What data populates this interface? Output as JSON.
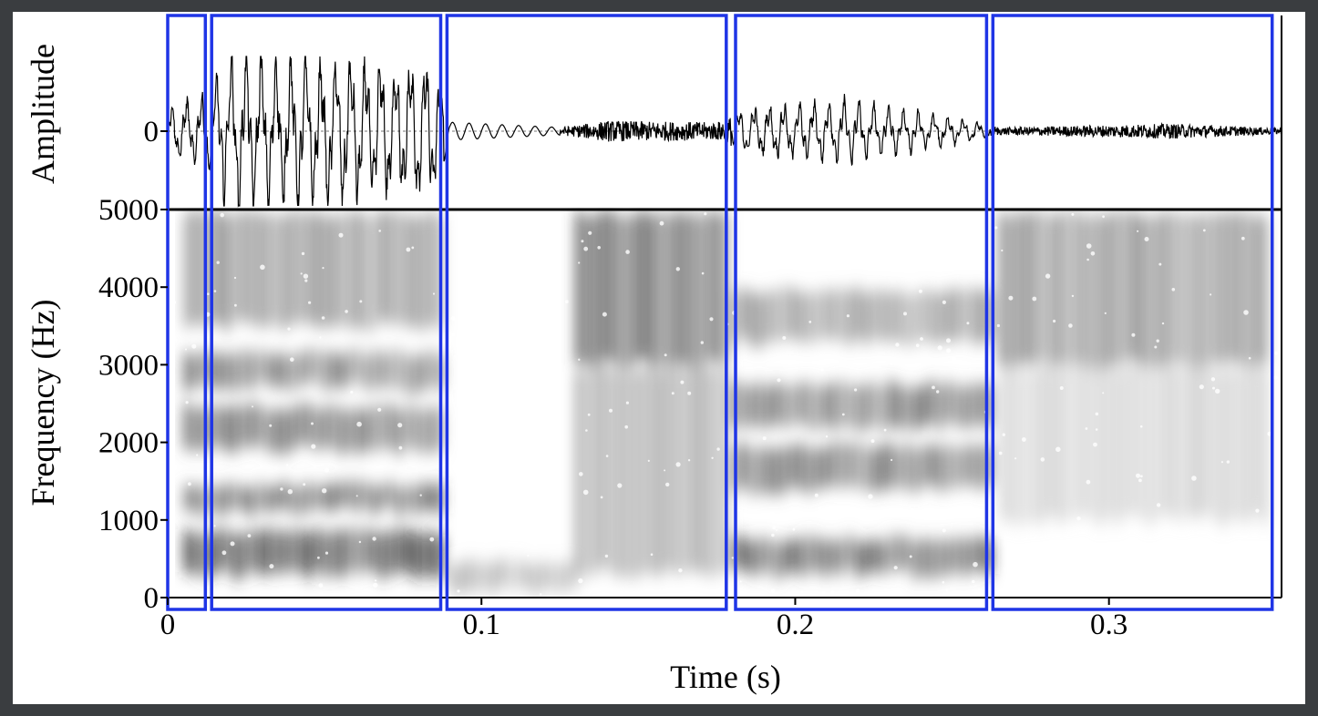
{
  "chart_data": {
    "type": "waveform_spectrogram",
    "title": "",
    "xlabel": "Time (s)",
    "x_ticks": [
      0,
      0.1,
      0.2,
      0.3
    ],
    "x_tick_labels": [
      "0",
      "0.1",
      "0.2",
      "0.3"
    ],
    "xlim": [
      0,
      0.355
    ],
    "waveform": {
      "ylabel": "Amplitude",
      "y_ticks": [
        0
      ],
      "y_tick_labels": [
        "0"
      ],
      "zero_line": "dashed",
      "envelope": [
        {
          "t": 0.0,
          "amp": 0.35
        },
        {
          "t": 0.012,
          "amp": 0.45
        },
        {
          "t": 0.02,
          "amp": 1.0
        },
        {
          "t": 0.05,
          "amp": 0.95
        },
        {
          "t": 0.085,
          "amp": 0.85
        },
        {
          "t": 0.09,
          "amp": 0.12
        },
        {
          "t": 0.125,
          "amp": 0.05
        },
        {
          "t": 0.14,
          "amp": 0.14
        },
        {
          "t": 0.175,
          "amp": 0.12
        },
        {
          "t": 0.185,
          "amp": 0.3
        },
        {
          "t": 0.215,
          "amp": 0.4
        },
        {
          "t": 0.255,
          "amp": 0.15
        },
        {
          "t": 0.265,
          "amp": 0.05
        },
        {
          "t": 0.32,
          "amp": 0.1
        },
        {
          "t": 0.355,
          "amp": 0.04
        }
      ]
    },
    "spectrogram": {
      "ylabel": "Frequency (Hz)",
      "y_ticks": [
        0,
        1000,
        2000,
        3000,
        4000,
        5000
      ],
      "y_tick_labels": [
        "0",
        "1000",
        "2000",
        "3000",
        "4000",
        "5000"
      ],
      "ylim": [
        0,
        5000
      ],
      "colormap": "grayscale",
      "energy_regions": [
        {
          "t0": 0.005,
          "t1": 0.088,
          "f0": 300,
          "f1": 900,
          "intensity": 0.95
        },
        {
          "t0": 0.005,
          "t1": 0.088,
          "f0": 1100,
          "f1": 1500,
          "intensity": 0.85
        },
        {
          "t0": 0.005,
          "t1": 0.088,
          "f0": 1900,
          "f1": 2500,
          "intensity": 0.75
        },
        {
          "t0": 0.005,
          "t1": 0.088,
          "f0": 2700,
          "f1": 3200,
          "intensity": 0.7
        },
        {
          "t0": 0.005,
          "t1": 0.088,
          "f0": 3500,
          "f1": 5000,
          "intensity": 0.6
        },
        {
          "t0": 0.09,
          "t1": 0.13,
          "f0": 100,
          "f1": 500,
          "intensity": 0.4
        },
        {
          "t0": 0.13,
          "t1": 0.178,
          "f0": 3000,
          "f1": 5000,
          "intensity": 0.8
        },
        {
          "t0": 0.13,
          "t1": 0.178,
          "f0": 300,
          "f1": 3000,
          "intensity": 0.45
        },
        {
          "t0": 0.18,
          "t1": 0.262,
          "f0": 300,
          "f1": 800,
          "intensity": 0.85
        },
        {
          "t0": 0.18,
          "t1": 0.262,
          "f0": 1400,
          "f1": 2000,
          "intensity": 0.8
        },
        {
          "t0": 0.18,
          "t1": 0.262,
          "f0": 2200,
          "f1": 2800,
          "intensity": 0.75
        },
        {
          "t0": 0.18,
          "t1": 0.262,
          "f0": 3300,
          "f1": 4000,
          "intensity": 0.55
        },
        {
          "t0": 0.265,
          "t1": 0.35,
          "f0": 3000,
          "f1": 5000,
          "intensity": 0.6
        },
        {
          "t0": 0.265,
          "t1": 0.35,
          "f0": 1000,
          "f1": 3000,
          "intensity": 0.25
        }
      ]
    },
    "segment_boxes": [
      {
        "t0": 0.0,
        "t1": 0.012
      },
      {
        "t0": 0.014,
        "t1": 0.087
      },
      {
        "t0": 0.089,
        "t1": 0.178
      },
      {
        "t0": 0.181,
        "t1": 0.261
      },
      {
        "t0": 0.263,
        "t1": 0.352
      }
    ],
    "colors": {
      "segment_box": "#1f35e6",
      "waveform": "#000000",
      "axes": "#000000",
      "background": "#ffffff",
      "frame": "#3a3d40"
    }
  }
}
